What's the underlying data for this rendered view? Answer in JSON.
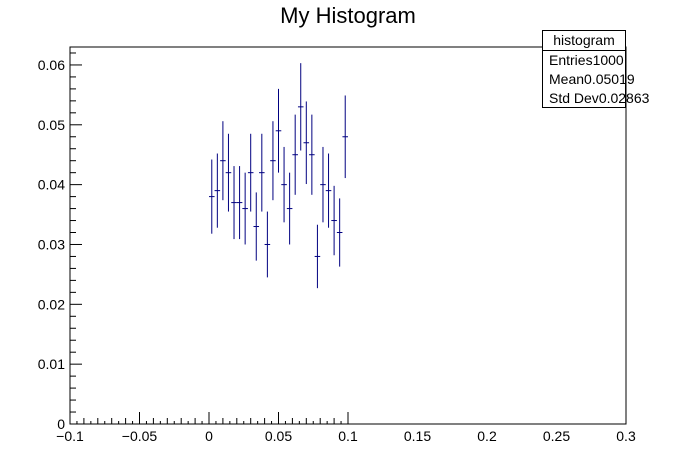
{
  "chart_data": {
    "type": "scatter",
    "title": "My Histogram",
    "xlabel": "",
    "ylabel": "",
    "xlim": [
      -0.1,
      0.3
    ],
    "ylim": [
      0,
      0.063
    ],
    "x_ticks": [
      "−0.1",
      "−0.05",
      "0",
      "0.05",
      "0.1",
      "0.15",
      "0.2",
      "0.25",
      "0.3"
    ],
    "x_tick_values": [
      -0.1,
      -0.05,
      0,
      0.05,
      0.1,
      0.15,
      0.2,
      0.25,
      0.3
    ],
    "y_ticks": [
      "0",
      "0.01",
      "0.02",
      "0.03",
      "0.04",
      "0.05",
      "0.06"
    ],
    "y_tick_values": [
      0,
      0.01,
      0.02,
      0.03,
      0.04,
      0.05,
      0.06
    ],
    "bin_width": 0.004,
    "series": [
      {
        "x": [
          0.002,
          0.006,
          0.01,
          0.014,
          0.018,
          0.022,
          0.026,
          0.03,
          0.034,
          0.038,
          0.042,
          0.046,
          0.05,
          0.054,
          0.058,
          0.062,
          0.066,
          0.07,
          0.074,
          0.078,
          0.082,
          0.086,
          0.09,
          0.094,
          0.098
        ],
        "y": [
          0.038,
          0.039,
          0.044,
          0.042,
          0.037,
          0.037,
          0.036,
          0.042,
          0.033,
          0.042,
          0.03,
          0.044,
          0.049,
          0.04,
          0.036,
          0.045,
          0.053,
          0.047,
          0.045,
          0.028,
          0.04,
          0.039,
          0.034,
          0.032,
          0.048
        ],
        "yerr": [
          0.0062,
          0.0062,
          0.0066,
          0.0065,
          0.0061,
          0.0061,
          0.006,
          0.0065,
          0.0057,
          0.0065,
          0.0055,
          0.0066,
          0.007,
          0.0063,
          0.006,
          0.0067,
          0.0073,
          0.0069,
          0.0067,
          0.0053,
          0.0063,
          0.0062,
          0.0058,
          0.0057,
          0.0069
        ],
        "color": "#000080"
      }
    ],
    "grid": false,
    "legend": "none"
  },
  "stats": {
    "title": "histogram",
    "rows": [
      {
        "label": "Entries",
        "value": "1000"
      },
      {
        "label": "Mean",
        "value": "0.05019"
      },
      {
        "label": "Std Dev",
        "value": "0.02863"
      }
    ]
  }
}
